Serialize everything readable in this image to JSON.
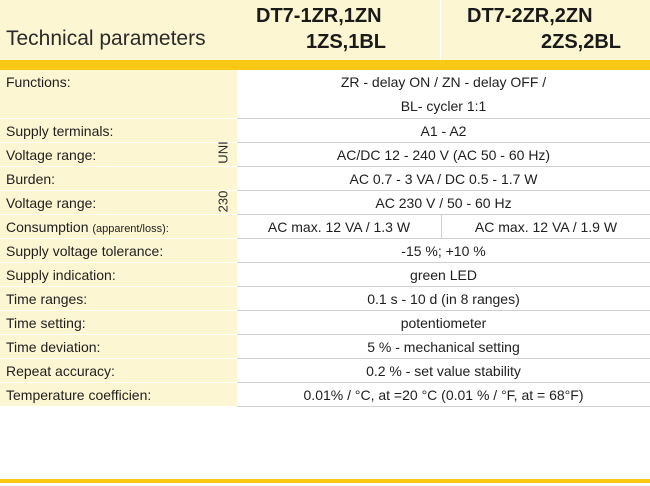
{
  "header": {
    "param_title": "Technical parameters",
    "model1_line1": "DT7-1ZR,1ZN",
    "model1_line2": "1ZS,1BL",
    "model2_line1": "DT7-2ZR,2ZN",
    "model2_line2": "2ZS,2BL"
  },
  "side_labels": {
    "uni": "UNI",
    "v230": "230"
  },
  "colors": {
    "accent": "#f8c814",
    "row_bg": "#fdf6d2"
  },
  "rows": [
    {
      "param": "Functions:",
      "value_line1": "ZR - delay ON / ZN - delay OFF /",
      "value_line2": "BL- cycler 1:1"
    },
    {
      "param": "Supply terminals:",
      "value": "A1 - A2"
    },
    {
      "param": "Voltage range:",
      "value": "AC/DC 12 - 240 V (AC 50 - 60 Hz)"
    },
    {
      "param": "Burden:",
      "value": "AC 0.7 - 3 VA / DC 0.5 - 1.7 W"
    },
    {
      "param": "Voltage range:",
      "value": "AC 230 V / 50 - 60 Hz"
    },
    {
      "param": "Consumption",
      "param_note": "(apparent/loss):",
      "value1": "AC max. 12 VA / 1.3 W",
      "value2": "AC max. 12 VA / 1.9 W"
    },
    {
      "param": "Supply voltage tolerance:",
      "value": "-15 %; +10 %"
    },
    {
      "param": "Supply indication:",
      "value": "green LED"
    },
    {
      "param": "Time ranges:",
      "value": "0.1 s - 10 d (in 8 ranges)"
    },
    {
      "param": "Time setting:",
      "value": "potentiometer"
    },
    {
      "param": "Time deviation:",
      "value": "5 % - mechanical setting"
    },
    {
      "param": "Repeat accuracy:",
      "value": "0.2 % - set value stability"
    },
    {
      "param": "Temperature coefficien:",
      "value": "0.01% / °C, at =20 °C (0.01 % / °F, at = 68°F)"
    }
  ]
}
